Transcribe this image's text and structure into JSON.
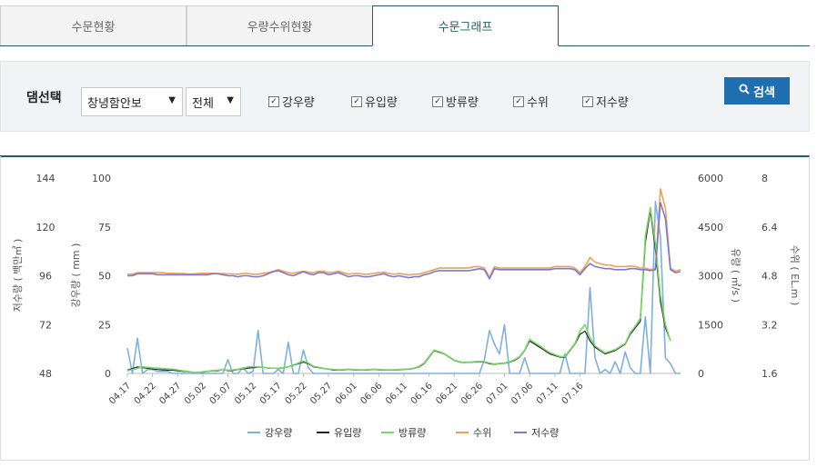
{
  "tabs": [
    {
      "label": "수문현황",
      "active": false
    },
    {
      "label": "우량수위현황",
      "active": false
    },
    {
      "label": "수문그래프",
      "active": true
    }
  ],
  "filter": {
    "label": "댐선택",
    "dam_select": "창녕함안보",
    "period_select": "전체",
    "checkboxes": [
      {
        "label": "강우량",
        "checked": true
      },
      {
        "label": "유입량",
        "checked": true
      },
      {
        "label": "방류량",
        "checked": true
      },
      {
        "label": "수위",
        "checked": true
      },
      {
        "label": "저수량",
        "checked": true
      }
    ],
    "search_button": "검색",
    "search_icon": "search-icon"
  },
  "chart_data": {
    "type": "line",
    "axes": {
      "storage": {
        "label": "저수량 ( 백만㎥ )",
        "ticks": [
          "144",
          "120",
          "96",
          "72",
          "48"
        ],
        "range": [
          48,
          144
        ]
      },
      "rainfall": {
        "label": "강우량 ( mm )",
        "ticks": [
          "100",
          "75",
          "50",
          "25",
          "0"
        ],
        "range": [
          0,
          100
        ]
      },
      "flow": {
        "label": "유량 ( ㎥/s )",
        "ticks": [
          "6000",
          "4500",
          "3000",
          "1500",
          "0"
        ],
        "range": [
          0,
          6000
        ]
      },
      "level": {
        "label": "수위 ( EL.m )",
        "ticks": [
          "8",
          "6.4",
          "4.8",
          "3.2",
          "1.6"
        ],
        "range": [
          1.6,
          8
        ]
      }
    },
    "x_labels": [
      "04.17",
      "04.22",
      "04.27",
      "05.02",
      "05.07",
      "05.12",
      "05.17",
      "05.22",
      "05.27",
      "06.01",
      "06.06",
      "06.11",
      "06.16",
      "06.21",
      "06.26",
      "07.01",
      "07.06",
      "07.11",
      "07.16"
    ],
    "series": [
      {
        "name": "강우량",
        "axis": "rainfall",
        "color": "#7fb0e0",
        "values": [
          13,
          0,
          18,
          0,
          2,
          2,
          1,
          1,
          1,
          0,
          0,
          0,
          0,
          0,
          0,
          0,
          0,
          0,
          0,
          0,
          7,
          0,
          0,
          3,
          0,
          1,
          22,
          0,
          0,
          0,
          2,
          0,
          16,
          0,
          0,
          12,
          3,
          0,
          0,
          0,
          0,
          0,
          0,
          0,
          0,
          0,
          0,
          0,
          0,
          0,
          0,
          0,
          0,
          0,
          0,
          0,
          0,
          0,
          0,
          0,
          0,
          0,
          0,
          0,
          0,
          0,
          0,
          0,
          0,
          0,
          0,
          7,
          22,
          15,
          10,
          25,
          0,
          0,
          0,
          8,
          0,
          0,
          0,
          0,
          0,
          0,
          0,
          10,
          0,
          0,
          0,
          0,
          44,
          8,
          0,
          2,
          0,
          6,
          0,
          11,
          3,
          0,
          0,
          29,
          0,
          88,
          70,
          8,
          5,
          0,
          0
        ]
      },
      {
        "name": "유입량",
        "axis": "flow",
        "color": "#222222",
        "values": [
          100,
          150,
          200,
          180,
          160,
          140,
          120,
          110,
          100,
          100,
          80,
          60,
          50,
          40,
          30,
          40,
          60,
          80,
          80,
          120,
          80,
          90,
          120,
          140,
          160,
          180,
          190,
          190,
          160,
          160,
          150,
          170,
          200,
          250,
          300,
          350,
          300,
          200,
          180,
          150,
          130,
          100,
          100,
          110,
          120,
          110,
          100,
          100,
          110,
          120,
          110,
          100,
          100,
          100,
          110,
          120,
          130,
          150,
          200,
          300,
          500,
          700,
          650,
          600,
          500,
          400,
          350,
          330,
          340,
          350,
          360,
          350,
          300,
          280,
          300,
          310,
          350,
          400,
          500,
          700,
          1000,
          900,
          800,
          700,
          600,
          550,
          500,
          500,
          700,
          900,
          1200,
          1300,
          1000,
          800,
          700,
          600,
          650,
          700,
          800,
          900,
          1200,
          1400,
          1600,
          4000,
          5000,
          3800,
          2200,
          1400,
          1000
        ]
      },
      {
        "name": "방류량",
        "axis": "flow",
        "color": "#7ad866",
        "values": [
          80,
          120,
          160,
          200,
          190,
          170,
          160,
          150,
          140,
          130,
          110,
          80,
          60,
          40,
          30,
          50,
          70,
          90,
          100,
          120,
          100,
          110,
          130,
          160,
          200,
          210,
          200,
          190,
          170,
          160,
          160,
          180,
          210,
          260,
          320,
          380,
          320,
          220,
          190,
          160,
          140,
          120,
          110,
          120,
          130,
          120,
          110,
          110,
          120,
          130,
          120,
          110,
          110,
          110,
          120,
          130,
          140,
          160,
          220,
          320,
          520,
          720,
          670,
          610,
          510,
          410,
          360,
          340,
          350,
          360,
          370,
          360,
          320,
          290,
          310,
          320,
          360,
          420,
          520,
          720,
          1050,
          950,
          850,
          740,
          640,
          580,
          520,
          520,
          720,
          920,
          1300,
          1500,
          1100,
          850,
          730,
          630,
          680,
          730,
          830,
          920,
          1250,
          1450,
          1700,
          4200,
          5100,
          4000,
          2400,
          1500,
          1000
        ]
      },
      {
        "name": "수위",
        "axis": "level",
        "color": "#f0a050",
        "values": [
          4.85,
          4.85,
          4.9,
          4.9,
          4.9,
          4.9,
          4.9,
          4.9,
          4.88,
          4.88,
          4.87,
          4.87,
          4.86,
          4.86,
          4.87,
          4.88,
          4.88,
          4.88,
          4.87,
          4.87,
          4.86,
          4.86,
          4.85,
          4.87,
          4.87,
          4.85,
          4.85,
          4.88,
          4.9,
          4.95,
          5.0,
          4.95,
          4.9,
          4.88,
          4.92,
          4.95,
          4.92,
          4.9,
          4.95,
          4.95,
          4.9,
          4.92,
          4.95,
          4.9,
          4.85,
          4.87,
          4.87,
          4.85,
          4.85,
          4.88,
          4.9,
          4.92,
          4.87,
          4.85,
          4.87,
          4.85,
          4.83,
          4.85,
          4.85,
          4.9,
          4.95,
          5.0,
          5.05,
          5.05,
          5.05,
          5.05,
          5.05,
          5.05,
          5.06,
          5.1,
          5.1,
          5.05,
          4.75,
          5.1,
          5.05,
          5.05,
          5.05,
          5.05,
          5.05,
          5.05,
          5.05,
          5.05,
          5.05,
          5.05,
          5.05,
          5.1,
          5.1,
          5.1,
          5.1,
          5.05,
          4.9,
          5.1,
          5.4,
          5.25,
          5.2,
          5.15,
          5.15,
          5.1,
          5.1,
          5.1,
          5.12,
          5.1,
          5.05,
          5.05,
          5.0,
          5.05,
          7.65,
          7.0,
          5.05,
          4.95,
          5.0
        ]
      },
      {
        "name": "저수량",
        "axis": "storage",
        "color": "#7b78d8",
        "values": [
          96,
          96,
          97,
          97,
          97,
          97,
          96.5,
          96.5,
          96.5,
          96.5,
          96.5,
          96.5,
          96.5,
          96.5,
          96.5,
          96.5,
          96.5,
          97,
          97,
          96.5,
          96,
          96,
          95.5,
          96,
          96,
          95.5,
          95.5,
          96,
          97,
          98,
          98.5,
          97.5,
          96.5,
          96,
          97,
          98,
          97,
          96.5,
          97.5,
          97.5,
          96.5,
          97,
          97.5,
          96.5,
          95.5,
          96,
          96,
          95.5,
          95.5,
          96,
          96.5,
          97,
          96,
          95.5,
          96,
          95.5,
          95,
          95.5,
          95.5,
          96.5,
          97,
          98,
          98.5,
          98.5,
          98.5,
          98.5,
          98.5,
          98.5,
          98.5,
          99,
          99.5,
          99,
          94.5,
          99.5,
          99,
          99,
          99,
          99,
          99,
          99,
          99,
          99,
          99,
          99,
          99,
          99.5,
          99.5,
          99.5,
          99.5,
          99,
          96.5,
          99.5,
          102,
          100.5,
          100,
          99.5,
          99.5,
          99,
          99,
          99,
          99.5,
          99.5,
          99,
          99,
          98.5,
          99,
          132,
          124,
          99,
          97.5,
          98
        ]
      }
    ],
    "legend": [
      "강우량",
      "유입량",
      "방류량",
      "수위",
      "저수량"
    ],
    "legend_position": "bottom"
  }
}
